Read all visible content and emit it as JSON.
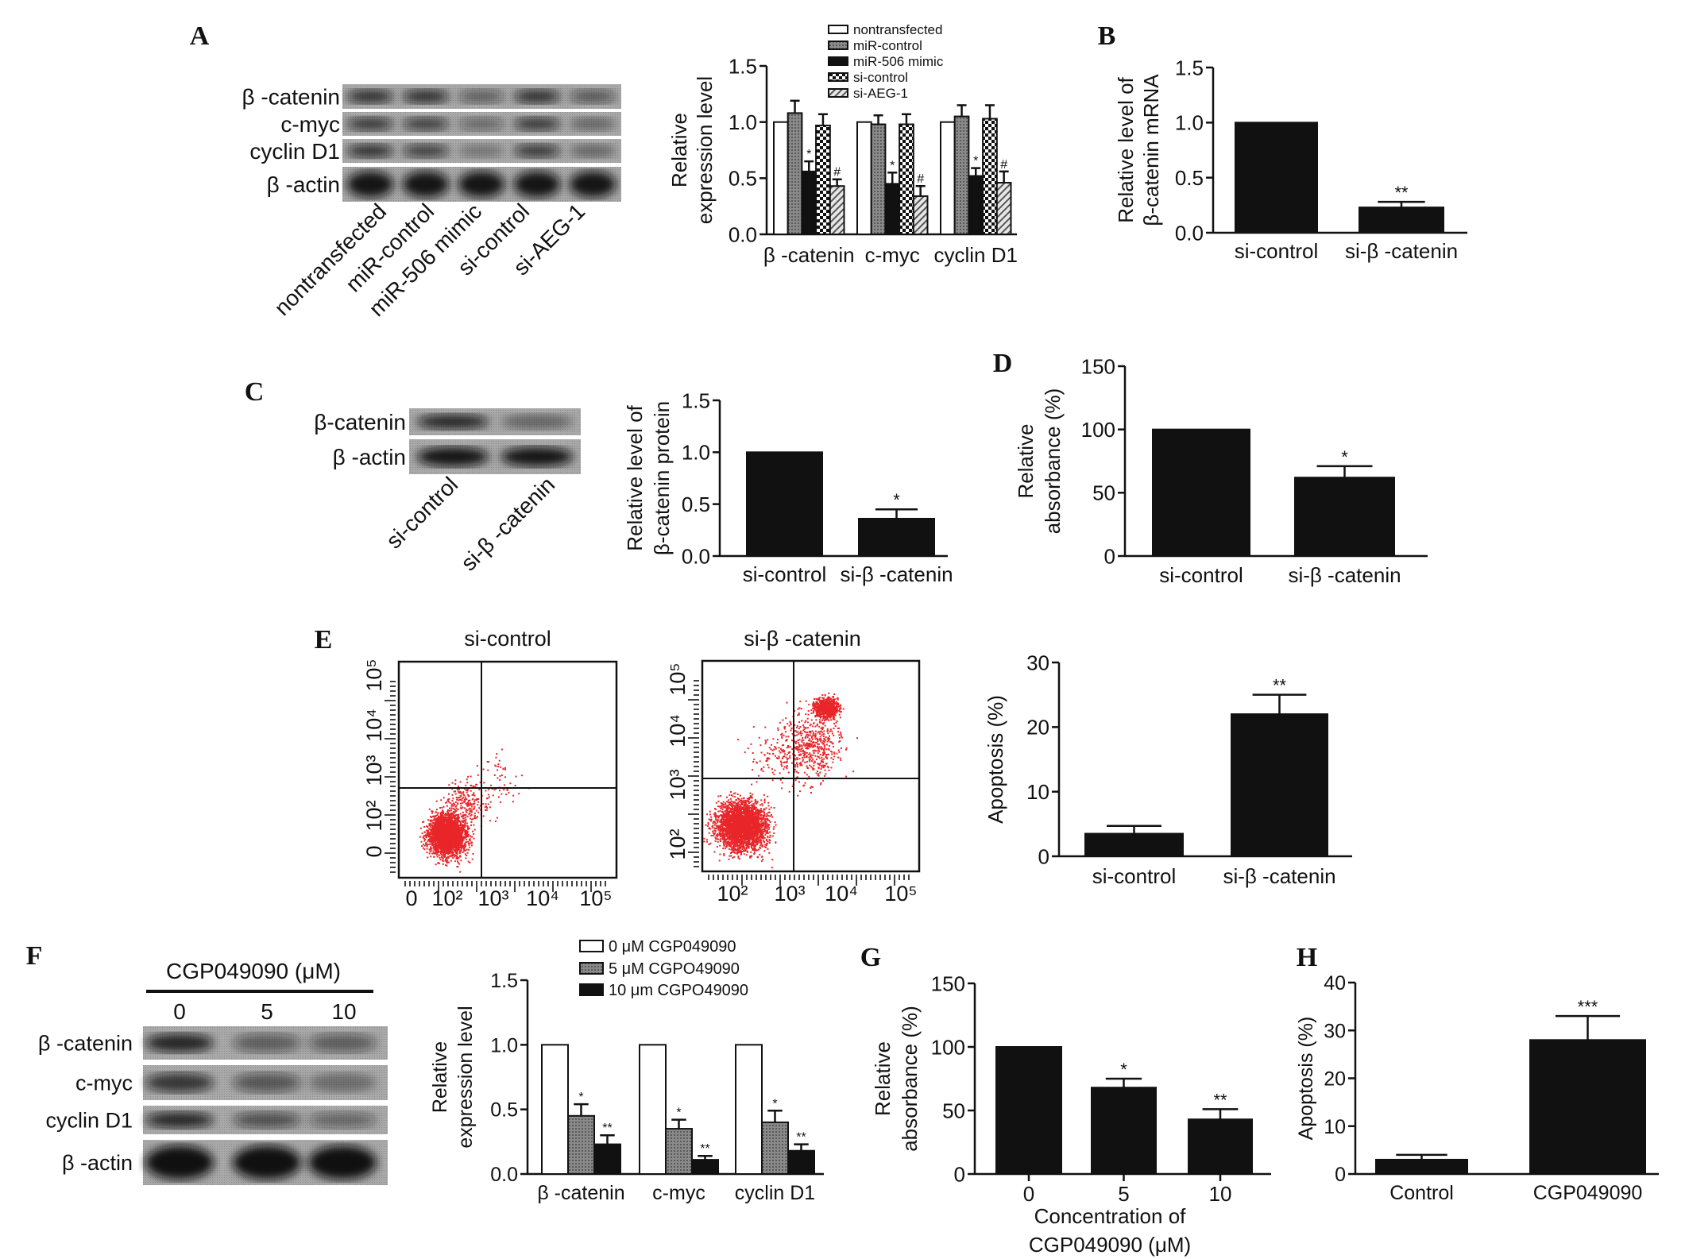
{
  "figure": {
    "panel_labels": [
      "A",
      "B",
      "C",
      "D",
      "E",
      "F",
      "G",
      "H"
    ]
  },
  "blots": {
    "A": {
      "rows": [
        "β -catenin",
        "c-myc",
        "cyclin D1",
        "β -actin"
      ],
      "lanes": [
        "nontransfected",
        "miR-control",
        "miR-506 mimic",
        "si-control",
        "si-AEG-1"
      ]
    },
    "C": {
      "rows": [
        "β-catenin",
        "β -actin"
      ],
      "lanes": [
        "si-control",
        "si-β -catenin"
      ]
    },
    "F": {
      "header": "CGP049090 (μM)",
      "lanes": [
        "0",
        "5",
        "10"
      ],
      "rows": [
        "β -catenin",
        "c-myc",
        "cyclin D1",
        "β -actin"
      ]
    }
  },
  "chart_data": [
    {
      "panel": "A",
      "type": "bar",
      "ylabel": [
        "Relative",
        "expression level"
      ],
      "ylim": [
        0,
        1.5
      ],
      "yticks": [
        0,
        0.5,
        1.0,
        1.5
      ],
      "ytick_labels": [
        "0.0",
        "0.5",
        "1.0",
        "1.5"
      ],
      "categories": [
        "β -catenin",
        "c-myc",
        "cyclin D1"
      ],
      "legend": "top",
      "series": [
        {
          "name": "nontransfected",
          "fill": "white",
          "values": [
            1.0,
            1.0,
            1.0
          ],
          "errors": [
            0,
            0,
            0
          ],
          "annotations": [
            "",
            "",
            ""
          ]
        },
        {
          "name": "miR-control",
          "fill": "gray-dots",
          "values": [
            1.08,
            0.98,
            1.05
          ],
          "errors": [
            0.11,
            0.08,
            0.1
          ],
          "annotations": [
            "",
            "",
            ""
          ]
        },
        {
          "name": "miR-506 mimic",
          "fill": "black",
          "values": [
            0.56,
            0.45,
            0.52
          ],
          "errors": [
            0.09,
            0.1,
            0.07
          ],
          "annotations": [
            "*",
            "*",
            "*"
          ]
        },
        {
          "name": "si-control",
          "fill": "checker",
          "values": [
            0.97,
            0.98,
            1.03
          ],
          "errors": [
            0.1,
            0.09,
            0.12
          ],
          "annotations": [
            "",
            "",
            ""
          ]
        },
        {
          "name": "si-AEG-1",
          "fill": "hatch",
          "values": [
            0.43,
            0.34,
            0.46
          ],
          "errors": [
            0.06,
            0.09,
            0.1
          ],
          "annotations": [
            "#",
            "#",
            "#"
          ]
        }
      ]
    },
    {
      "panel": "B",
      "type": "bar",
      "ylabel": [
        "Relative level of",
        "β-catenin mRNA"
      ],
      "ylim": [
        0,
        1.5
      ],
      "yticks": [
        0,
        0.5,
        1.0,
        1.5
      ],
      "ytick_labels": [
        "0.0",
        "0.5",
        "1.0",
        "1.5"
      ],
      "categories": [
        "si-control",
        "si-β -catenin"
      ],
      "values": [
        1.0,
        0.23
      ],
      "errors": [
        0,
        0.05
      ],
      "annotations": [
        "",
        "**"
      ]
    },
    {
      "panel": "C",
      "type": "bar",
      "ylabel": [
        "Relative level of",
        "β-catenin protein"
      ],
      "ylim": [
        0,
        1.5
      ],
      "yticks": [
        0,
        0.5,
        1.0,
        1.5
      ],
      "ytick_labels": [
        "0.0",
        "0.5",
        "1.0",
        "1.5"
      ],
      "categories": [
        "si-control",
        "si-β -catenin"
      ],
      "values": [
        1.0,
        0.36
      ],
      "errors": [
        0,
        0.09
      ],
      "annotations": [
        "",
        "*"
      ]
    },
    {
      "panel": "D",
      "type": "bar",
      "ylabel": [
        "Relative",
        "absorbance (%)"
      ],
      "ylim": [
        0,
        150
      ],
      "yticks": [
        0,
        50,
        100,
        150
      ],
      "ytick_labels": [
        "0",
        "50",
        "100",
        "150"
      ],
      "categories": [
        "si-control",
        "si-β -catenin"
      ],
      "values": [
        100,
        62
      ],
      "errors": [
        0,
        9
      ],
      "annotations": [
        "",
        "*"
      ]
    },
    {
      "panel": "E",
      "type": "scatter",
      "plots": [
        {
          "title": "si-control",
          "xtick_labels": [
            "0",
            "10²",
            "10³",
            "10⁴",
            "10⁵"
          ],
          "ytick_labels": [
            "0",
            "10²",
            "10³",
            "10⁴",
            "10⁵"
          ]
        },
        {
          "title": "si-β -catenin",
          "xtick_labels": [
            "10²",
            "10³",
            "10⁴",
            "10⁵"
          ],
          "ytick_labels": [
            "10²",
            "10³",
            "10⁴",
            "10⁵"
          ]
        }
      ],
      "point_color": "#e8262a"
    },
    {
      "panel": "E",
      "type": "bar",
      "ylabel": [
        "Apoptosis (%)"
      ],
      "ylim": [
        0,
        30
      ],
      "yticks": [
        0,
        10,
        20,
        30
      ],
      "ytick_labels": [
        "0",
        "10",
        "20",
        "30"
      ],
      "categories": [
        "si-control",
        "si-β -catenin"
      ],
      "values": [
        3.5,
        22
      ],
      "errors": [
        1.2,
        3
      ],
      "annotations": [
        "",
        "**"
      ]
    },
    {
      "panel": "F",
      "type": "bar",
      "ylabel": [
        "Relative",
        "expression level"
      ],
      "ylim": [
        0,
        1.5
      ],
      "yticks": [
        0,
        0.5,
        1.0,
        1.5
      ],
      "ytick_labels": [
        "0.0",
        "0.5",
        "1.0",
        "1.5"
      ],
      "categories": [
        "β -catenin",
        "c-myc",
        "cyclin D1"
      ],
      "legend": "top",
      "series": [
        {
          "name": "0 μM CGP049090",
          "fill": "white",
          "values": [
            1.0,
            1.0,
            1.0
          ],
          "errors": [
            0,
            0,
            0
          ],
          "annotations": [
            "",
            "",
            ""
          ]
        },
        {
          "name": "5 μM CGPO49090",
          "fill": "gray-dots",
          "values": [
            0.45,
            0.35,
            0.4
          ],
          "errors": [
            0.09,
            0.07,
            0.09
          ],
          "annotations": [
            "*",
            "*",
            "*"
          ]
        },
        {
          "name": "10 μm CGPO49090",
          "fill": "black",
          "values": [
            0.23,
            0.11,
            0.18
          ],
          "errors": [
            0.07,
            0.03,
            0.05
          ],
          "annotations": [
            "**",
            "**",
            "**"
          ]
        }
      ]
    },
    {
      "panel": "G",
      "type": "bar",
      "ylabel": [
        "Relative",
        "absorbance (%)"
      ],
      "xlabel": [
        "Concentration of",
        "CGP049090 (μM)"
      ],
      "ylim": [
        0,
        150
      ],
      "yticks": [
        0,
        50,
        100,
        150
      ],
      "ytick_labels": [
        "0",
        "50",
        "100",
        "150"
      ],
      "categories": [
        "0",
        "5",
        "10"
      ],
      "values": [
        100,
        68,
        43
      ],
      "errors": [
        0,
        7,
        8
      ],
      "annotations": [
        "",
        "*",
        "**"
      ]
    },
    {
      "panel": "H",
      "type": "bar",
      "ylabel": [
        "Apoptosis (%)"
      ],
      "ylim": [
        0,
        40
      ],
      "yticks": [
        0,
        10,
        20,
        30,
        40
      ],
      "ytick_labels": [
        "0",
        "10",
        "20",
        "30",
        "40"
      ],
      "categories": [
        "Control",
        "CGP049090"
      ],
      "values": [
        3,
        28
      ],
      "errors": [
        1,
        5
      ],
      "annotations": [
        "",
        "***"
      ]
    }
  ]
}
